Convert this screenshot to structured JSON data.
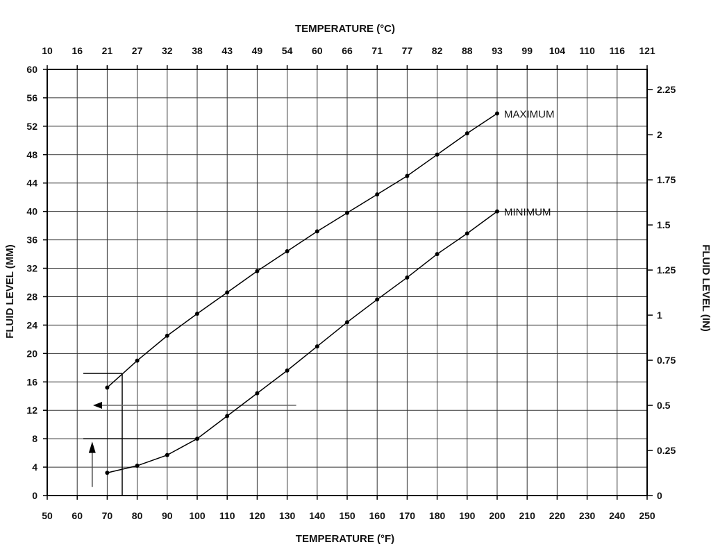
{
  "chart_data": {
    "type": "line",
    "x_bottom": {
      "label": "TEMPERATURE (°F)",
      "range": [
        50,
        250
      ],
      "ticks": [
        50,
        60,
        70,
        80,
        90,
        100,
        110,
        120,
        130,
        140,
        150,
        160,
        170,
        180,
        190,
        200,
        210,
        220,
        230,
        240,
        250
      ]
    },
    "x_top": {
      "label": "TEMPERATURE (°C)",
      "ticks": [
        "10",
        "16",
        "21",
        "27",
        "32",
        "38",
        "43",
        "49",
        "54",
        "60",
        "66",
        "71",
        "77",
        "82",
        "88",
        "93",
        "99",
        "104",
        "110",
        "116",
        "121"
      ]
    },
    "y_left": {
      "label": "FLUID LEVEL (MM)",
      "range": [
        0,
        60
      ],
      "ticks": [
        0,
        4,
        8,
        12,
        16,
        20,
        24,
        28,
        32,
        36,
        40,
        44,
        48,
        52,
        56,
        60
      ]
    },
    "y_right": {
      "label": "FLUID LEVEL (IN)",
      "ticks": [
        {
          "value": 0,
          "label": "0"
        },
        {
          "value": 0.25,
          "label": "0.25"
        },
        {
          "value": 0.5,
          "label": "0.5"
        },
        {
          "value": 0.75,
          "label": "0.75"
        },
        {
          "value": 1,
          "label": "1"
        },
        {
          "value": 1.25,
          "label": "1.25"
        },
        {
          "value": 1.5,
          "label": "1.5"
        },
        {
          "value": 1.75,
          "label": "1.75"
        },
        {
          "value": 2,
          "label": "2"
        },
        {
          "value": 2.25,
          "label": "2.25"
        }
      ]
    },
    "grid": true,
    "series": [
      {
        "name": "MAXIMUM",
        "x": [
          70,
          80,
          90,
          100,
          110,
          120,
          130,
          140,
          150,
          160,
          170,
          180,
          190,
          200
        ],
        "y": [
          15.2,
          19.0,
          22.5,
          25.6,
          28.6,
          31.6,
          34.4,
          37.2,
          39.8,
          42.4,
          45.0,
          48.0,
          51.0,
          53.8
        ]
      },
      {
        "name": "MINIMUM",
        "x": [
          70,
          80,
          90,
          100,
          110,
          120,
          130,
          140,
          150,
          160,
          170,
          180,
          190,
          200
        ],
        "y": [
          3.2,
          4.2,
          5.7,
          8.0,
          11.2,
          14.4,
          17.6,
          21.0,
          24.4,
          27.6,
          30.7,
          34.0,
          36.9,
          40.0
        ]
      }
    ],
    "annotations": {
      "vertical_guide_x": 75,
      "max_guide_y": 17.2,
      "min_guide_y": 8.0,
      "left_arrow_y": 12.7,
      "left_arrow_from_x": 133,
      "up_arrow_x": 65
    }
  }
}
